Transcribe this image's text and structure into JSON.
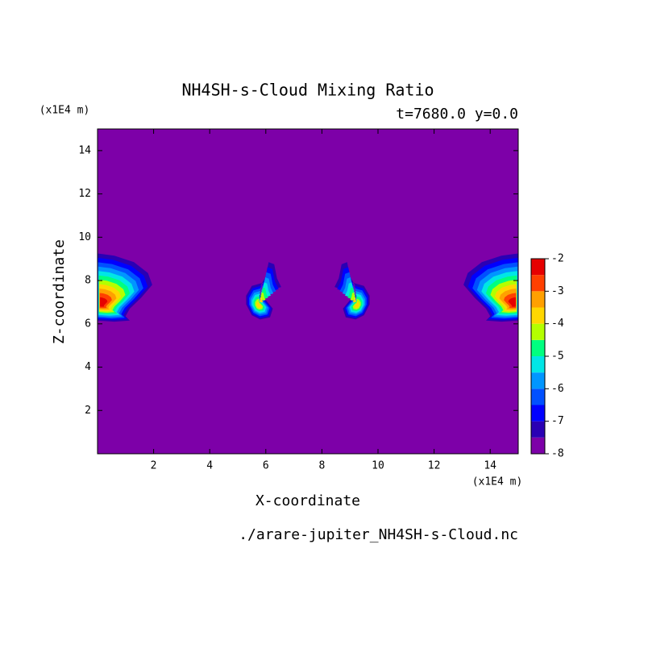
{
  "chart_data": {
    "type": "contour",
    "title": "NH4SH-s-Cloud Mixing Ratio",
    "subtitle": "t=7680.0 y=0.0",
    "xlabel": "X-coordinate",
    "ylabel": "Z-coordinate",
    "x_unit": "(x1E4 m)",
    "y_unit": "(x1E4 m)",
    "footnote": "./arare-jupiter_NH4SH-s-Cloud.nc",
    "xlim": [
      0,
      15
    ],
    "ylim": [
      0,
      15
    ],
    "xticks": [
      2,
      4,
      6,
      8,
      10,
      12,
      14
    ],
    "yticks": [
      2,
      4,
      6,
      8,
      10,
      12,
      14
    ],
    "colorbar": {
      "levels": [
        -8,
        -7.5,
        -7,
        -6.5,
        -6,
        -5.5,
        -5,
        -4.5,
        -4,
        -3.5,
        -3,
        -2.5,
        -2
      ],
      "colors": [
        "#7d00a8",
        "#2a00b4",
        "#0000ff",
        "#0050ff",
        "#0096ff",
        "#00e6e6",
        "#00ff80",
        "#b4ff00",
        "#ffd700",
        "#ffa000",
        "#ff4000",
        "#e60000",
        "#ffa8a8"
      ],
      "ticks": [
        -2,
        -3,
        -4,
        -5,
        -6,
        -7,
        -8
      ]
    }
  }
}
